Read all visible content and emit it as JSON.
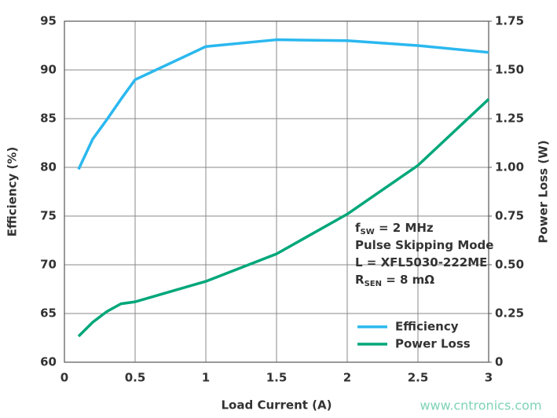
{
  "chart_data": {
    "type": "line",
    "x_label": "Load Current (A)",
    "y_label": "Efficiency (%)",
    "y2_label": "Power Loss (W)",
    "x": [
      0.1,
      0.2,
      0.3,
      0.4,
      0.5,
      1.0,
      1.5,
      2.0,
      2.5,
      3.0
    ],
    "series": [
      {
        "name": "Efficiency",
        "color": "#2bb8ef",
        "values": [
          79.8,
          82.9,
          84.9,
          87.0,
          89.0,
          92.4,
          93.1,
          93.0,
          92.5,
          91.8
        ]
      },
      {
        "name": "Power Loss",
        "color": "#00a77a",
        "axis": "y2",
        "values": [
          0.133,
          0.205,
          0.26,
          0.3,
          0.31,
          0.415,
          0.556,
          0.76,
          1.01,
          1.35
        ]
      }
    ],
    "xlim": [
      0,
      3
    ],
    "xticks": [
      0,
      0.5,
      1,
      1.5,
      2,
      2.5,
      3
    ],
    "ylim": [
      60,
      95
    ],
    "yticks": [
      60,
      65,
      70,
      75,
      80,
      85,
      90,
      95
    ],
    "y2lim": [
      0,
      1.75
    ],
    "y2ticks": [
      0,
      0.25,
      {
        "value": 0.5,
        "label": "0.50"
      },
      0.75,
      {
        "value": 1,
        "label": "1.00"
      },
      1.25,
      {
        "value": 1.5,
        "label": "1.50"
      },
      1.75
    ],
    "grid": true,
    "legend": "lower right",
    "annotations": [
      {
        "main": "f",
        "sub": "SW",
        "rest": " = 2 MHz"
      },
      {
        "main": "Pulse Skipping Mode"
      },
      {
        "main": "L = XFL5030-222ME"
      },
      {
        "main": "R",
        "sub": "SEN",
        "rest": " = 8 mΩ"
      }
    ],
    "watermark": "www.cntronics.com"
  }
}
